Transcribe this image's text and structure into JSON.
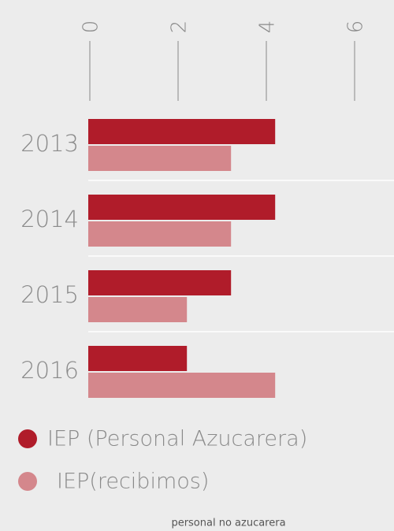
{
  "chart_data": {
    "type": "barh",
    "categories": [
      "2013",
      "2014",
      "2015",
      "2016"
    ],
    "series": [
      {
        "name": "IEP (Personal Azucarera)",
        "color": "#b01c2a",
        "values": [
          4.2,
          4.2,
          3.2,
          2.2
        ]
      },
      {
        "name": "IEP(recibimos)",
        "color": "#d4878c",
        "values": [
          3.2,
          3.2,
          2.2,
          4.2
        ]
      }
    ],
    "xlim": [
      0,
      6
    ],
    "xticks": [
      0,
      2,
      4,
      6
    ],
    "note": "personal no azucarera"
  }
}
